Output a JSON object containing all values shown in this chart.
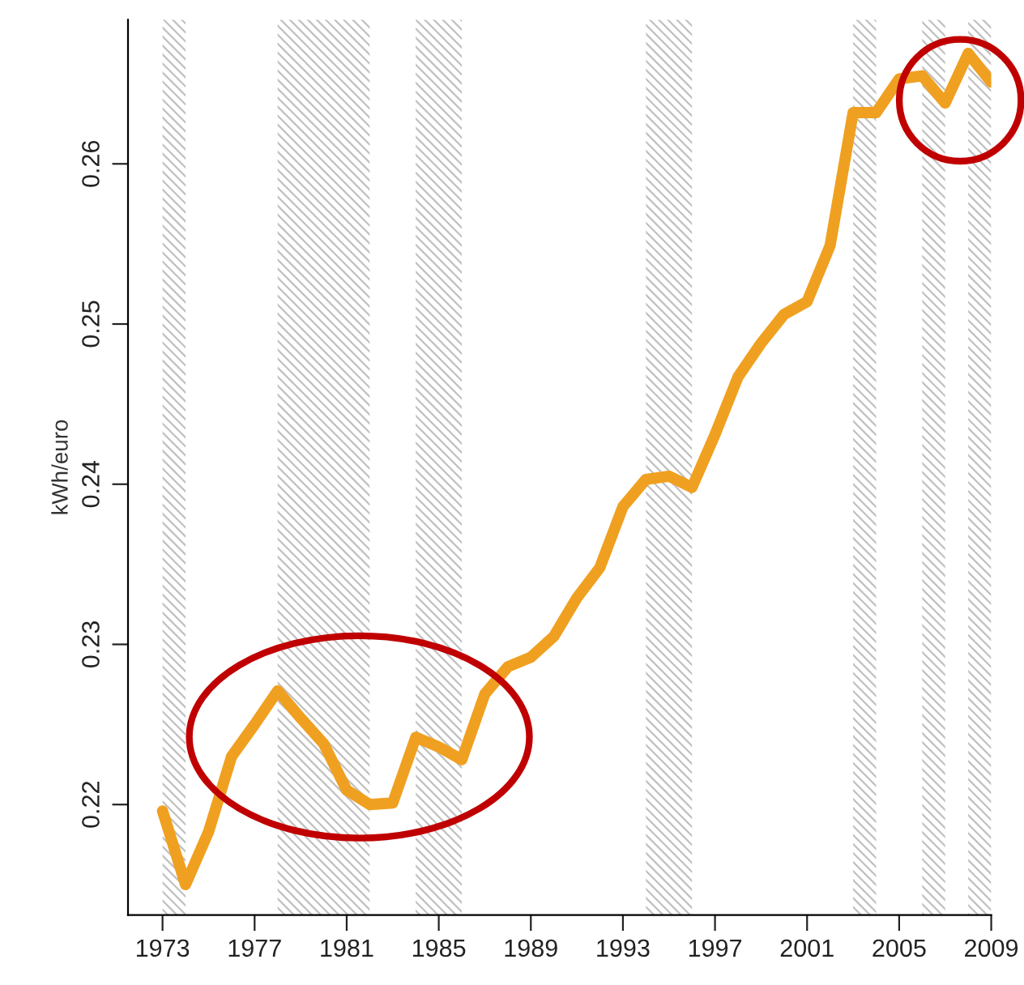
{
  "chart_data": {
    "type": "line",
    "ylabel": "kWh/euro",
    "x": [
      1973,
      1974,
      1975,
      1976,
      1977,
      1978,
      1979,
      1980,
      1981,
      1982,
      1983,
      1984,
      1985,
      1986,
      1987,
      1988,
      1989,
      1990,
      1991,
      1992,
      1993,
      1994,
      1995,
      1996,
      1997,
      1998,
      1999,
      2000,
      2001,
      2002,
      2003,
      2004,
      2005,
      2006,
      2007,
      2008,
      2009
    ],
    "series": [
      {
        "color": "#f0a020",
        "values": [
          0.2196,
          0.215,
          0.2183,
          0.223,
          0.225,
          0.2271,
          0.2254,
          0.2238,
          0.2209,
          0.22,
          0.2201,
          0.2242,
          0.2236,
          0.2228,
          0.2269,
          0.2286,
          0.2292,
          0.2305,
          0.2329,
          0.2348,
          0.2386,
          0.2403,
          0.2405,
          0.2398,
          0.2431,
          0.2467,
          0.2488,
          0.2506,
          0.2514,
          0.2549,
          0.2632,
          0.2632,
          0.2653,
          0.2655,
          0.2638,
          0.2669,
          0.2651
        ]
      }
    ],
    "xlim": [
      1971.5,
      2009.0
    ],
    "ylim": [
      0.2131,
      0.269
    ],
    "xticks": [
      1973,
      1977,
      1981,
      1985,
      1989,
      1993,
      1997,
      2001,
      2005,
      2009
    ],
    "yticks": [
      0.22,
      0.23,
      0.24,
      0.25,
      0.26
    ],
    "bands": [
      {
        "axis": "x",
        "from": 1973,
        "to": 1974,
        "color": "#c0c0c0"
      },
      {
        "axis": "x",
        "from": 1978,
        "to": 1982,
        "color": "#c0c0c0"
      },
      {
        "axis": "x",
        "from": 1984,
        "to": 1986,
        "color": "#c0c0c0"
      },
      {
        "axis": "x",
        "from": 1994,
        "to": 1996,
        "color": "#c0c0c0"
      },
      {
        "axis": "x",
        "from": 2003,
        "to": 2004,
        "color": "#c0c0c0"
      },
      {
        "axis": "x",
        "from": 2006,
        "to": 2007,
        "color": "#c0c0c0"
      },
      {
        "axis": "x",
        "from": 2008,
        "to": 2009,
        "color": "#c0c0c0"
      }
    ],
    "grid": false,
    "legend": false,
    "marker": "none",
    "line_style": "solid"
  }
}
